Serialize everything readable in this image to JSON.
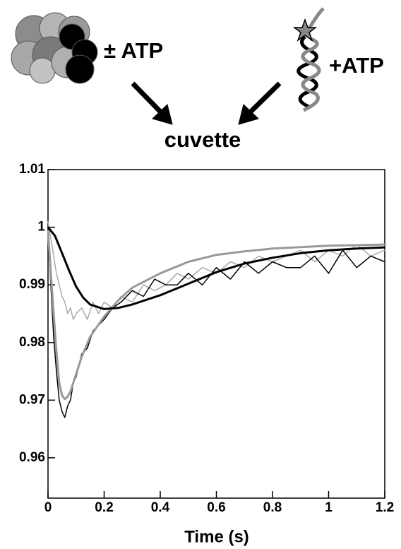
{
  "schematic": {
    "left_label": "± ATP",
    "right_label": "+ATP",
    "target_label": "cuvette"
  },
  "chart_data": {
    "type": "line",
    "x_label": "Time (s)",
    "xlim": [
      0,
      1.2
    ],
    "xticks": [
      0,
      0.2,
      0.4,
      0.6,
      0.8,
      1,
      1.2
    ],
    "ylim": [
      0.953,
      1.01
    ],
    "yticks": [
      1.01,
      1,
      0.99,
      0.98,
      0.97,
      0.96
    ],
    "series": [
      {
        "color": "#aaaaaa",
        "width": 1.5,
        "x": [
          0,
          0.01,
          0.02,
          0.03,
          0.04,
          0.05,
          0.06,
          0.07,
          0.08,
          0.09,
          0.1,
          0.12,
          0.14,
          0.16,
          0.18,
          0.2,
          0.23,
          0.26,
          0.3,
          0.34,
          0.38,
          0.42,
          0.46,
          0.5,
          0.55,
          0.6,
          0.65,
          0.7,
          0.75,
          0.8,
          0.85,
          0.9,
          0.95,
          1,
          1.05,
          1.1,
          1.15,
          1.2
        ],
        "values": [
          1.001,
          0.998,
          0.995,
          0.992,
          0.99,
          0.988,
          0.987,
          0.985,
          0.986,
          0.984,
          0.985,
          0.986,
          0.984,
          0.987,
          0.985,
          0.987,
          0.986,
          0.988,
          0.987,
          0.99,
          0.989,
          0.99,
          0.992,
          0.991,
          0.993,
          0.992,
          0.994,
          0.993,
          0.995,
          0.994,
          0.995,
          0.996,
          0.994,
          0.996,
          0.995,
          0.997,
          0.995,
          0.996
        ]
      },
      {
        "color": "#000000",
        "width": 1.5,
        "x": [
          0,
          0.01,
          0.02,
          0.03,
          0.04,
          0.05,
          0.06,
          0.07,
          0.08,
          0.09,
          0.1,
          0.12,
          0.14,
          0.16,
          0.18,
          0.2,
          0.23,
          0.26,
          0.3,
          0.34,
          0.38,
          0.42,
          0.46,
          0.5,
          0.55,
          0.6,
          0.65,
          0.7,
          0.75,
          0.8,
          0.85,
          0.9,
          0.95,
          1,
          1.05,
          1.1,
          1.15,
          1.2
        ],
        "values": [
          0.999,
          0.99,
          0.981,
          0.975,
          0.97,
          0.968,
          0.967,
          0.969,
          0.97,
          0.973,
          0.974,
          0.978,
          0.979,
          0.982,
          0.983,
          0.984,
          0.986,
          0.987,
          0.989,
          0.988,
          0.991,
          0.99,
          0.99,
          0.992,
          0.99,
          0.993,
          0.991,
          0.994,
          0.992,
          0.994,
          0.993,
          0.993,
          0.995,
          0.992,
          0.996,
          0.993,
          0.995,
          0.994
        ]
      },
      {
        "color": "#999999",
        "width": 3,
        "x": [
          0,
          0.01,
          0.02,
          0.03,
          0.04,
          0.05,
          0.06,
          0.07,
          0.08,
          0.1,
          0.12,
          0.15,
          0.2,
          0.25,
          0.3,
          0.4,
          0.5,
          0.6,
          0.7,
          0.8,
          1,
          1.2
        ],
        "values": [
          0.9995,
          0.992,
          0.985,
          0.9785,
          0.973,
          0.9708,
          0.9702,
          0.9706,
          0.9715,
          0.9745,
          0.9775,
          0.981,
          0.9845,
          0.9873,
          0.9895,
          0.992,
          0.994,
          0.9952,
          0.9958,
          0.9963,
          0.9968,
          0.997
        ]
      },
      {
        "color": "#000000",
        "width": 3,
        "x": [
          0,
          0.025,
          0.05,
          0.075,
          0.1,
          0.125,
          0.15,
          0.2,
          0.25,
          0.3,
          0.4,
          0.5,
          0.6,
          0.7,
          0.8,
          0.9,
          1,
          1.1,
          1.2
        ],
        "values": [
          1,
          0.9985,
          0.9955,
          0.9925,
          0.9897,
          0.9878,
          0.9866,
          0.9858,
          0.986,
          0.9866,
          0.9882,
          0.9902,
          0.9922,
          0.9937,
          0.9947,
          0.9955,
          0.996,
          0.9963,
          0.9965
        ]
      }
    ]
  }
}
